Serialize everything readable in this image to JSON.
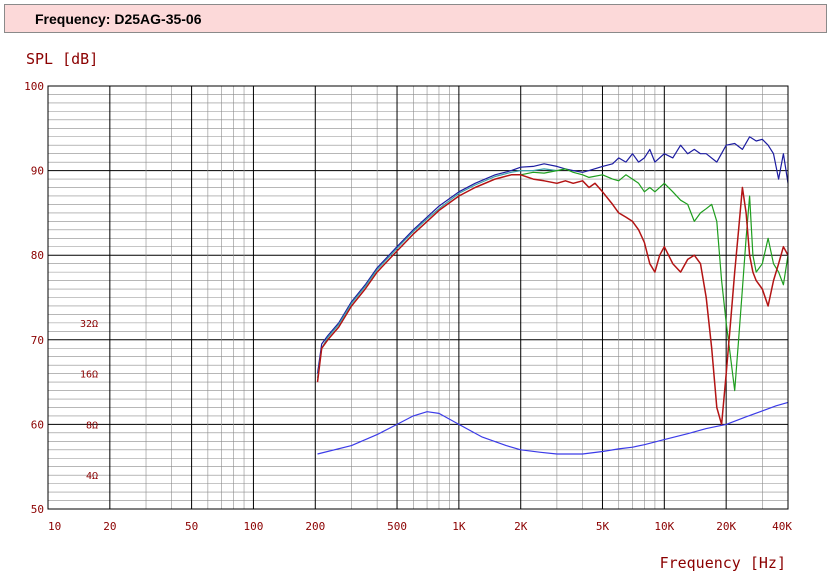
{
  "header": {
    "title": "Frequency: D25AG-35-06"
  },
  "colors": {
    "red_text": "#8b0000",
    "grid_major": "#000000",
    "grid_minor": "#8c8c8c",
    "series_blue": "#1c1ca0",
    "series_red": "#b31414",
    "series_green": "#1e9e1e",
    "series_teal": "#3c9fa8",
    "impedance": "#3b3be8"
  },
  "chart_data": {
    "type": "line",
    "xscale": "log",
    "xlabel": "Frequency [Hz]",
    "ylabel": "SPL [dB]",
    "xlim": [
      10,
      40000
    ],
    "ylim": [
      50,
      100
    ],
    "grid": true,
    "x_ticks": [
      {
        "value": 10,
        "label": "10"
      },
      {
        "value": 20,
        "label": "20"
      },
      {
        "value": 50,
        "label": "50"
      },
      {
        "value": 100,
        "label": "100"
      },
      {
        "value": 200,
        "label": "200"
      },
      {
        "value": 500,
        "label": "500"
      },
      {
        "value": 1000,
        "label": "1K"
      },
      {
        "value": 2000,
        "label": "2K"
      },
      {
        "value": 5000,
        "label": "5K"
      },
      {
        "value": 10000,
        "label": "10K"
      },
      {
        "value": 20000,
        "label": "20K"
      },
      {
        "value": 40000,
        "label": "40K"
      }
    ],
    "y_ticks": [
      {
        "value": 100,
        "label": "100"
      },
      {
        "value": 90,
        "label": "90"
      },
      {
        "value": 80,
        "label": "80"
      },
      {
        "value": 70,
        "label": "70"
      },
      {
        "value": 60,
        "label": "60"
      },
      {
        "value": 50,
        "label": "50"
      }
    ],
    "impedance_labels": [
      {
        "label": "32Ω",
        "y": 72
      },
      {
        "label": "16Ω",
        "y": 66
      },
      {
        "label": "8Ω",
        "y": 60
      },
      {
        "label": "4Ω",
        "y": 54
      }
    ],
    "series": [
      {
        "key": "blue",
        "x": [
          205,
          215,
          230,
          260,
          300,
          350,
          400,
          500,
          600,
          700,
          800,
          1000,
          1200,
          1500,
          1800,
          2000,
          2300,
          2600,
          3000,
          3300,
          3600,
          4000,
          4300,
          5000,
          5600,
          6000,
          6500,
          7000,
          7500,
          8000,
          8500,
          9000,
          10000,
          11000,
          12000,
          13000,
          14000,
          15000,
          16000,
          18000,
          20000,
          22000,
          24000,
          26000,
          28000,
          30000,
          32000,
          34000,
          36000,
          38000,
          40000
        ],
        "y": [
          66,
          69.5,
          70.5,
          72,
          74.5,
          76.5,
          78.5,
          81,
          83,
          84.5,
          85.8,
          87.5,
          88.5,
          89.5,
          90,
          90.4,
          90.5,
          90.8,
          90.5,
          90.2,
          90,
          89.8,
          90,
          90.5,
          90.8,
          91.5,
          91,
          92,
          91,
          91.5,
          92.5,
          91,
          92,
          91.5,
          93,
          92,
          92.5,
          92,
          92,
          91,
          93,
          93.2,
          92.5,
          94,
          93.5,
          93.7,
          93,
          92,
          89,
          92,
          88.5
        ]
      },
      {
        "key": "teal",
        "x": [
          205,
          215,
          230,
          260,
          300,
          350,
          400,
          500,
          600,
          700,
          800,
          1000,
          1200,
          1500,
          1800,
          2000,
          2300,
          2600,
          3000
        ],
        "y": [
          65.5,
          69,
          70.3,
          71.8,
          74.3,
          76.3,
          78.3,
          80.8,
          82.8,
          84.3,
          85.5,
          87.3,
          88.3,
          89.3,
          89.8,
          90,
          90,
          90.2,
          90
        ]
      },
      {
        "key": "green",
        "x": [
          2000,
          2300,
          2600,
          3000,
          3300,
          3600,
          4000,
          4300,
          5000,
          5600,
          6000,
          6500,
          7000,
          7500,
          8000,
          8500,
          9000,
          10000,
          11000,
          12000,
          13000,
          14000,
          15000,
          16000,
          17000,
          18000,
          19000,
          20000,
          21000,
          22000,
          23000,
          24000,
          25000,
          26000,
          27000,
          28000,
          30000,
          32000,
          34000,
          36000,
          38000,
          40000
        ],
        "y": [
          89.5,
          89.8,
          89.7,
          90,
          90.2,
          89.8,
          89.5,
          89.2,
          89.5,
          89,
          88.8,
          89.5,
          89,
          88.5,
          87.5,
          88,
          87.5,
          88.5,
          87.5,
          86.5,
          86,
          84,
          85,
          85.5,
          86,
          84,
          77,
          72,
          68,
          64,
          70,
          76,
          82,
          87,
          80,
          78,
          79,
          82,
          79,
          78,
          76.5,
          80
        ]
      },
      {
        "key": "red",
        "x": [
          205,
          215,
          230,
          260,
          300,
          350,
          400,
          500,
          600,
          700,
          800,
          1000,
          1200,
          1500,
          1800,
          2000,
          2300,
          2600,
          3000,
          3300,
          3600,
          4000,
          4300,
          4600,
          5000,
          5600,
          6000,
          6500,
          7000,
          7500,
          8000,
          8500,
          9000,
          9500,
          10000,
          11000,
          12000,
          13000,
          14000,
          15000,
          16000,
          17000,
          18000,
          19000,
          20000,
          21000,
          22000,
          23000,
          24000,
          25000,
          26000,
          27000,
          28000,
          30000,
          32000,
          34000,
          36000,
          38000,
          40000
        ],
        "y": [
          65,
          69,
          70,
          71.5,
          74,
          76,
          78,
          80.5,
          82.5,
          84,
          85.3,
          87,
          88,
          89,
          89.5,
          89.5,
          89,
          88.8,
          88.5,
          88.8,
          88.5,
          88.8,
          88,
          88.5,
          87.5,
          86,
          85,
          84.5,
          84,
          83,
          81.5,
          79,
          78,
          80,
          81,
          79,
          78,
          79.5,
          80,
          79,
          75,
          69,
          62,
          60,
          66,
          72,
          78,
          83,
          88,
          85,
          80,
          78,
          77,
          76,
          74,
          77,
          79,
          81,
          80
        ]
      },
      {
        "key": "impedance",
        "x": [
          205,
          300,
          400,
          500,
          600,
          700,
          800,
          1000,
          1300,
          1700,
          2000,
          2500,
          3000,
          3500,
          4000,
          5000,
          6000,
          7000,
          8000,
          10000,
          13000,
          16000,
          20000,
          25000,
          30000,
          35000,
          40000
        ],
        "y": [
          56.5,
          57.5,
          58.8,
          60,
          61,
          61.5,
          61.3,
          60,
          58.5,
          57.5,
          57,
          56.7,
          56.5,
          56.5,
          56.5,
          56.8,
          57.1,
          57.3,
          57.6,
          58.2,
          58.9,
          59.5,
          60,
          60.9,
          61.6,
          62.2,
          62.6
        ]
      }
    ]
  }
}
